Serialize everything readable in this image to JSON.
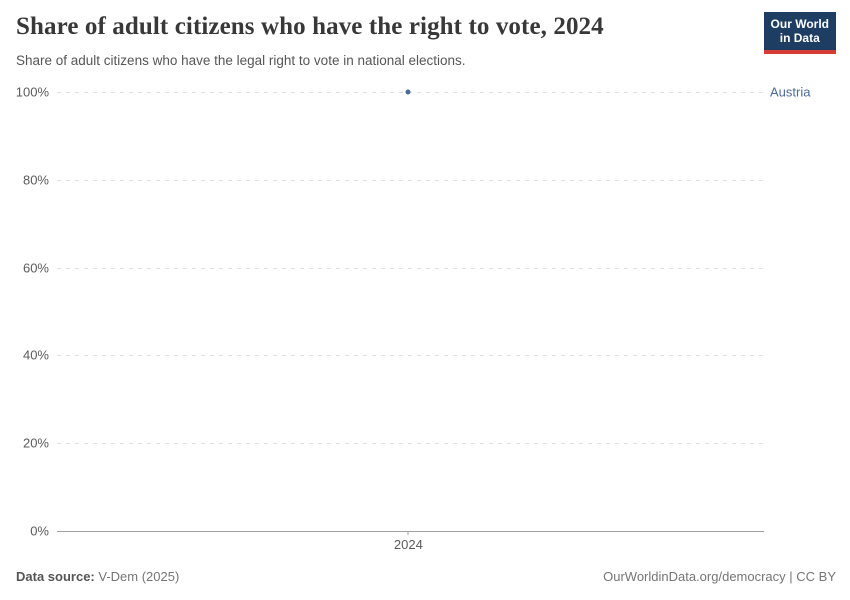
{
  "header": {
    "title": "Share of adult citizens who have the right to vote, 2024",
    "subtitle": "Share of adult citizens who have the legal right to vote in national elections.",
    "logo": {
      "line1": "Our World",
      "line2": "in Data"
    }
  },
  "chart_data": {
    "type": "scatter",
    "title": "Share of adult citizens who have the right to vote, 2024",
    "x": [
      2024
    ],
    "series": [
      {
        "name": "Austria",
        "values": [
          100
        ],
        "color": "#4c6a9c"
      }
    ],
    "xlabel": "",
    "ylabel": "",
    "ylim": [
      0,
      100
    ],
    "yticks": [
      0,
      20,
      40,
      60,
      80,
      100
    ],
    "ytick_suffix": "%",
    "xticks": [
      "2024"
    ],
    "grid": "horizontal-dashed",
    "legend_position": "entity-label-right"
  },
  "colors": {
    "accent": "#4c6a9c",
    "gridline": "#e0e0e0",
    "axis": "#a1a1a1",
    "tick_text": "#5b5b5b",
    "logo_bg": "#1d3d63",
    "logo_accent": "#d73c34"
  },
  "footer": {
    "source_label": "Data source:",
    "source_value": "V-Dem (2025)",
    "credit": "OurWorldinData.org/democracy | CC BY"
  }
}
